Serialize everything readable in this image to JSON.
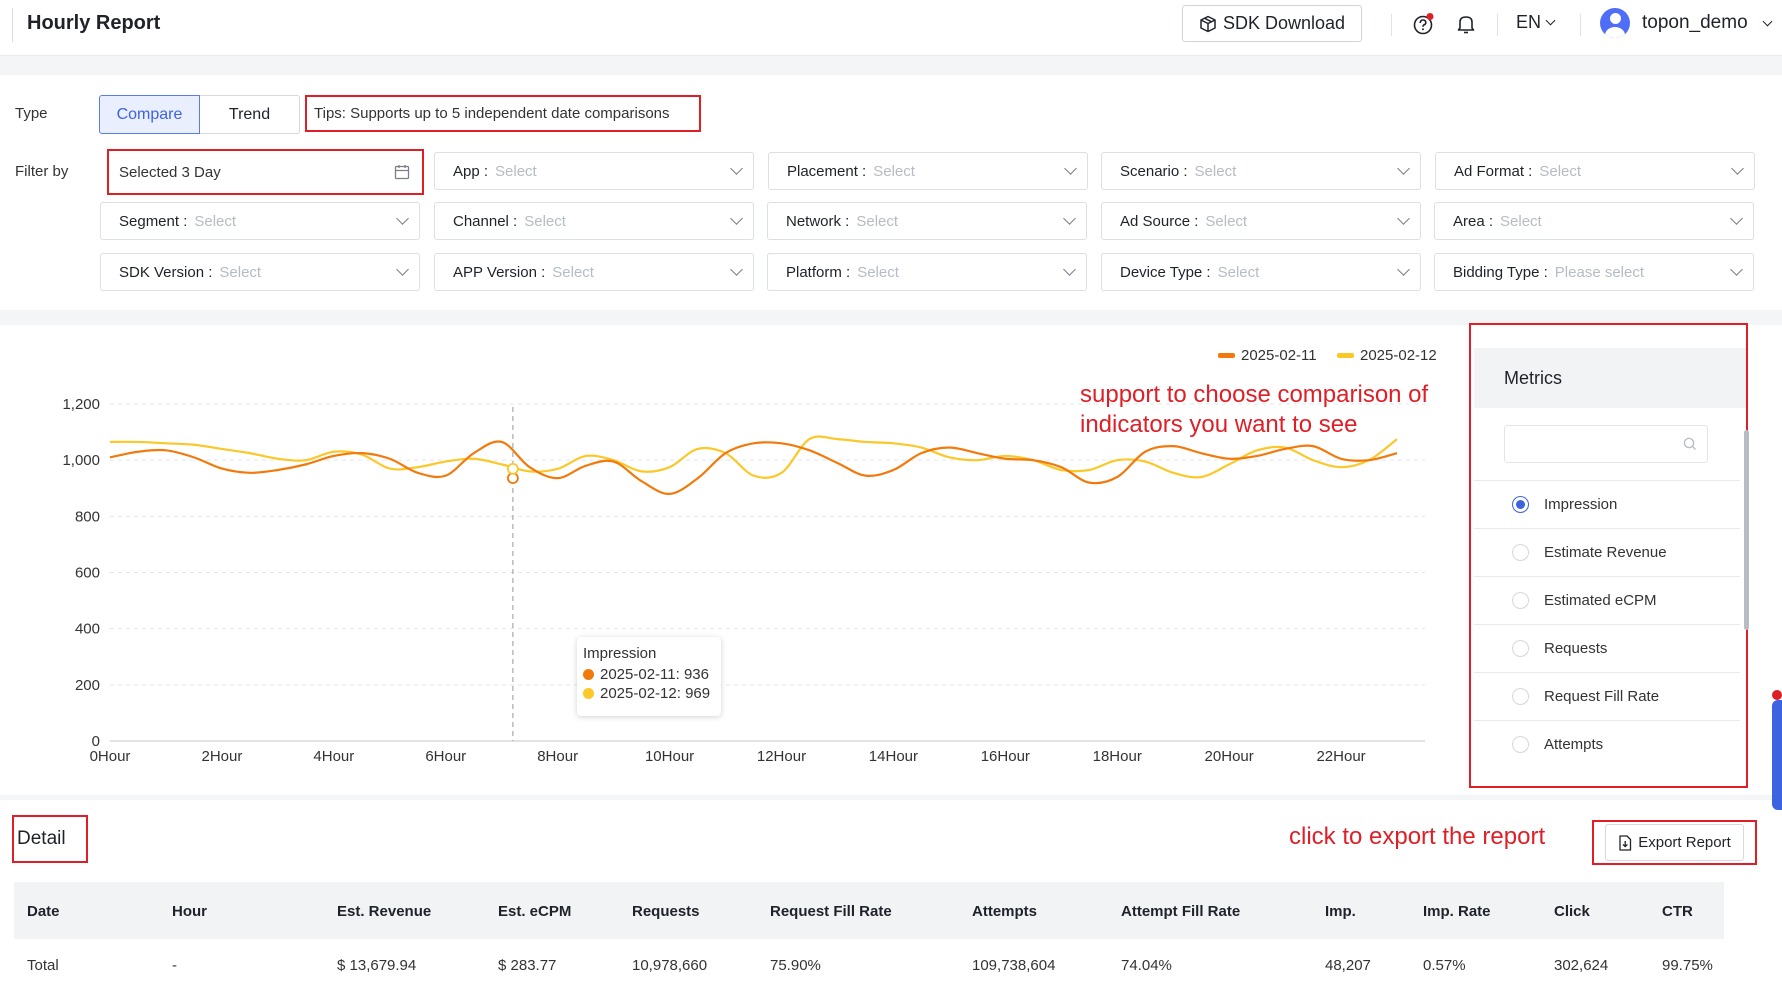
{
  "header": {
    "title": "Hourly Report",
    "sdk_download": "SDK Download",
    "language": "EN",
    "username": "topon_demo"
  },
  "filters": {
    "type_label": "Type",
    "type_options": [
      "Compare",
      "Trend"
    ],
    "selected_type": "Compare",
    "tips": "Tips: Supports up to 5 independent date comparisons",
    "filter_by_label": "Filter by",
    "date_value": "Selected 3 Day",
    "selects": [
      {
        "label": "App :",
        "placeholder": "Select"
      },
      {
        "label": "Placement :",
        "placeholder": "Select"
      },
      {
        "label": "Scenario :",
        "placeholder": "Select"
      },
      {
        "label": "Ad Format :",
        "placeholder": "Select"
      },
      {
        "label": "Segment :",
        "placeholder": "Select"
      },
      {
        "label": "Channel :",
        "placeholder": "Select"
      },
      {
        "label": "Network :",
        "placeholder": "Select"
      },
      {
        "label": "Ad Source :",
        "placeholder": "Select"
      },
      {
        "label": "Area :",
        "placeholder": "Select"
      },
      {
        "label": "SDK Version :",
        "placeholder": "Select"
      },
      {
        "label": "APP Version :",
        "placeholder": "Select"
      },
      {
        "label": "Platform :",
        "placeholder": "Select"
      },
      {
        "label": "Device Type :",
        "placeholder": "Select"
      },
      {
        "label": "Bidding Type :",
        "placeholder": "Please select"
      }
    ]
  },
  "annotations": {
    "metrics_note_line1": "support to choose comparison of",
    "metrics_note_line2": "indicators you want to see",
    "export_note": "click to export the report"
  },
  "chart_data": {
    "type": "line",
    "ylim": [
      0,
      1200
    ],
    "yticks": [
      "0",
      "200",
      "400",
      "600",
      "800",
      "1,000",
      "1,200"
    ],
    "xtick_labels": [
      "0Hour",
      "2Hour",
      "4Hour",
      "6Hour",
      "8Hour",
      "10Hour",
      "12Hour",
      "14Hour",
      "16Hour",
      "18Hour",
      "20Hour",
      "22Hour"
    ],
    "x": [
      0,
      0.5,
      1,
      1.5,
      2,
      2.5,
      3,
      3.5,
      4,
      4.5,
      5,
      5.5,
      6,
      6.5,
      7,
      7.5,
      8,
      8.5,
      9,
      9.5,
      10,
      10.5,
      11,
      11.5,
      12,
      12.5,
      13,
      13.5,
      14,
      14.5,
      15,
      15.5,
      16,
      16.5,
      17,
      17.5,
      18,
      18.5,
      19,
      19.5,
      20,
      20.5,
      21,
      21.5,
      22,
      22.5,
      23
    ],
    "series": [
      {
        "name": "2025-02-11",
        "color": "#f27a0c",
        "values": [
          1010,
          1030,
          1035,
          1010,
          970,
          955,
          965,
          985,
          1015,
          1025,
          1005,
          955,
          945,
          1025,
          1065,
          975,
          936,
          980,
          995,
          925,
          880,
          935,
          1025,
          1060,
          1060,
          1035,
          990,
          945,
          965,
          1025,
          1045,
          1025,
          1005,
          1000,
          975,
          920,
          940,
          1030,
          1050,
          1025,
          1005,
          1015,
          1040,
          1050,
          1005,
          1000,
          1025
        ]
      },
      {
        "name": "2025-02-12",
        "color": "#fbc82a",
        "values": [
          1065,
          1065,
          1060,
          1055,
          1040,
          1025,
          1005,
          1000,
          1030,
          1020,
          970,
          975,
          995,
          1005,
          985,
          960,
          969,
          1015,
          1000,
          960,
          975,
          1040,
          1025,
          945,
          955,
          1075,
          1075,
          1065,
          1060,
          1045,
          1010,
          1000,
          1015,
          1000,
          965,
          965,
          1000,
          995,
          955,
          940,
          985,
          1035,
          1045,
          1000,
          975,
          1000,
          1075
        ]
      }
    ],
    "tooltip": {
      "title": "Impression",
      "hour": 7.2,
      "values": [
        "2025-02-11: 936",
        "2025-02-12: 969"
      ]
    }
  },
  "metrics": {
    "title": "Metrics",
    "items": [
      "Impression",
      "Estimate Revenue",
      "Estimated eCPM",
      "Requests",
      "Request Fill Rate",
      "Attempts"
    ],
    "selected": "Impression"
  },
  "detail": {
    "title": "Detail",
    "export_label": "Export Report",
    "columns": [
      "Date",
      "Hour",
      "Est. Revenue",
      "Est. eCPM",
      "Requests",
      "Request Fill Rate",
      "Attempts",
      "Attempt Fill Rate",
      "Imp.",
      "Imp. Rate",
      "Click",
      "CTR"
    ],
    "total_row": [
      "Total",
      "-",
      "$ 13,679.94",
      "$ 283.77",
      "10,978,660",
      "75.90%",
      "109,738,604",
      "74.04%",
      "48,207",
      "0.57%",
      "302,624",
      "99.75%"
    ]
  }
}
